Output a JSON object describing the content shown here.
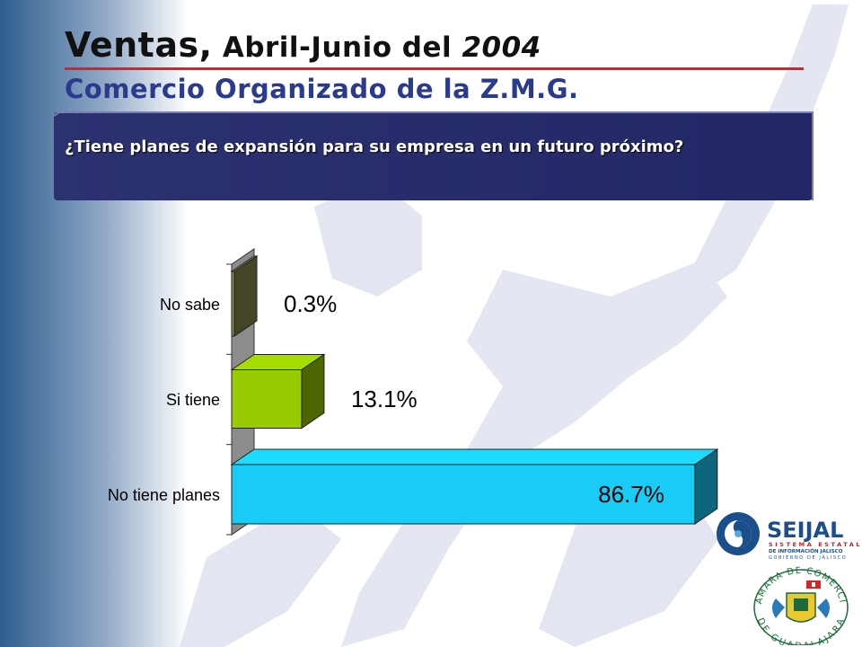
{
  "slide": {
    "title_part1": "Ventas,",
    "title_part2": " Abril-Junio del ",
    "title_part3": "2004",
    "subtitle": "Comercio Organizado de la Z.M.G.",
    "question": "¿Tiene planes de expansión para su empresa en un futuro próximo?"
  },
  "colors": {
    "left_band_dark": "#2f5e8e",
    "question_box": "#262a6b",
    "title_rule": "#e02020",
    "subtitle": "#2a3a8c"
  },
  "chart_data": {
    "type": "bar",
    "orientation": "horizontal",
    "categories": [
      "No sabe",
      "Si tiene",
      "No tiene planes"
    ],
    "values": [
      0.3,
      13.1,
      86.7
    ],
    "value_labels": [
      "0.3%",
      "13.1%",
      "86.7%"
    ],
    "bar_colors": [
      "#8a8a50",
      "#99cc00",
      "#19ccf5"
    ],
    "xlim": [
      0,
      100
    ],
    "grid": false,
    "legend": "none"
  },
  "logos": {
    "seijal_name": "SEIJAL",
    "seijal_line1": "SISTEMA ESTATAL",
    "seijal_line2": "DE INFORMACIÓN JALISCO",
    "seijal_line3": "GOBIERNO DE JALISCO",
    "camara_top": "CAMARA DE COMERCIO",
    "camara_bottom": "DE GUADALAJARA"
  }
}
